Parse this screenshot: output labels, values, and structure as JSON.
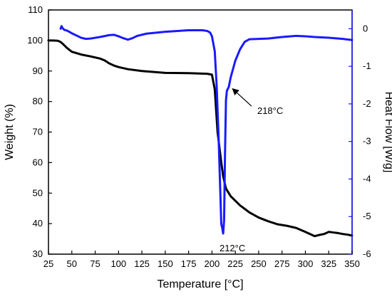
{
  "chart_data": {
    "type": "line",
    "xlabel": "Temperature [°C]",
    "ylabel": "Weight (%)",
    "ylabel_right": "Heat Flow [W/g]",
    "xlim": [
      25,
      350
    ],
    "ylim": [
      30,
      110
    ],
    "ylim_right": [
      -6,
      0.5
    ],
    "x_ticks": [
      25,
      50,
      75,
      100,
      125,
      150,
      175,
      200,
      225,
      250,
      275,
      300,
      325,
      350
    ],
    "y_ticks": [
      30,
      40,
      50,
      60,
      70,
      80,
      90,
      100,
      110
    ],
    "y_ticks_right": [
      0,
      -1,
      -2,
      -3,
      -4,
      -5,
      -6
    ],
    "grid": false,
    "legend": "none",
    "colors": {
      "weight": "#000000",
      "heat_flow": "#1a1aff",
      "axis_left": "#000000",
      "axis_right": "#1a1aff"
    },
    "series": [
      {
        "axis": "left",
        "x": [
          25,
          30,
          35,
          38,
          40,
          45,
          50,
          60,
          70,
          80,
          85,
          90,
          95,
          100,
          110,
          125,
          150,
          175,
          195,
          200,
          203,
          206,
          208,
          210,
          212,
          215,
          220,
          230,
          240,
          250,
          260,
          270,
          280,
          290,
          300,
          305,
          310,
          315,
          320,
          325,
          330,
          335,
          340,
          345,
          350
        ],
        "values": [
          100,
          100,
          99.9,
          99.5,
          99,
          97.5,
          96.3,
          95.4,
          94.8,
          94.1,
          93.5,
          92.5,
          91.8,
          91.3,
          90.6,
          90,
          89.4,
          89.3,
          89.1,
          88.8,
          84,
          70,
          65,
          60,
          55.5,
          51.5,
          49,
          46,
          43.7,
          42,
          40.8,
          39.8,
          39.3,
          38.6,
          37.3,
          36.6,
          35.9,
          36.3,
          36.6,
          37.3,
          37.1,
          36.9,
          36.6,
          36.4,
          36.1
        ]
      },
      {
        "axis": "right",
        "x": [
          38,
          39,
          40,
          42,
          45,
          50,
          55,
          60,
          65,
          70,
          80,
          90,
          95,
          100,
          105,
          110,
          115,
          120,
          130,
          150,
          175,
          190,
          195,
          198,
          200,
          203,
          205,
          207,
          209,
          210,
          211,
          212,
          213,
          214,
          215,
          216,
          218,
          220,
          225,
          230,
          235,
          240,
          250,
          260,
          275,
          290,
          300,
          310,
          325,
          340,
          350
        ],
        "values": [
          0,
          0.07,
          0.02,
          -0.03,
          -0.05,
          -0.12,
          -0.18,
          -0.24,
          -0.27,
          -0.26,
          -0.22,
          -0.17,
          -0.16,
          -0.2,
          -0.25,
          -0.29,
          -0.25,
          -0.19,
          -0.13,
          -0.08,
          -0.04,
          -0.04,
          -0.06,
          -0.1,
          -0.2,
          -0.6,
          -1.5,
          -2.8,
          -4.4,
          -5.2,
          -5.3,
          -5.45,
          -5.1,
          -3.3,
          -1.9,
          -1.65,
          -1.55,
          -1.3,
          -0.85,
          -0.55,
          -0.35,
          -0.28,
          -0.27,
          -0.26,
          -0.22,
          -0.19,
          -0.2,
          -0.22,
          -0.24,
          -0.27,
          -0.3
        ]
      }
    ],
    "annotations": [
      {
        "text": "212°C",
        "x": 212,
        "y_right": -5.45,
        "arrow": false
      },
      {
        "text": "218°C",
        "x": 218,
        "y_right": -1.55,
        "arrow": true
      }
    ]
  }
}
